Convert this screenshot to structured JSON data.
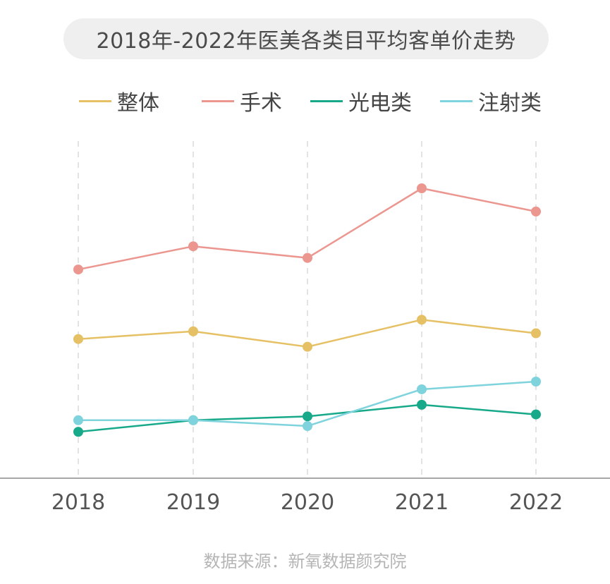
{
  "chart_data": {
    "type": "line",
    "title": "2018年-2022年医美各类目平均客单价走势",
    "categories": [
      "2018",
      "2019",
      "2020",
      "2021",
      "2022"
    ],
    "series": [
      {
        "name": "整体",
        "color": "#e6c064",
        "values": [
          36,
          38,
          34,
          41,
          37.5
        ]
      },
      {
        "name": "手术",
        "color": "#ec9690",
        "values": [
          54,
          60,
          57,
          75,
          69
        ]
      },
      {
        "name": "光电类",
        "color": "#17a989",
        "values": [
          12,
          15,
          16,
          19,
          16.5
        ]
      },
      {
        "name": "注射类",
        "color": "#7ed3dd",
        "values": [
          15,
          15,
          13.5,
          23,
          25
        ]
      }
    ],
    "ylim": [
      0,
      100
    ],
    "grid": "vertical dashed",
    "legend_position": "top"
  },
  "source": "数据来源：新氧数据颜究院"
}
